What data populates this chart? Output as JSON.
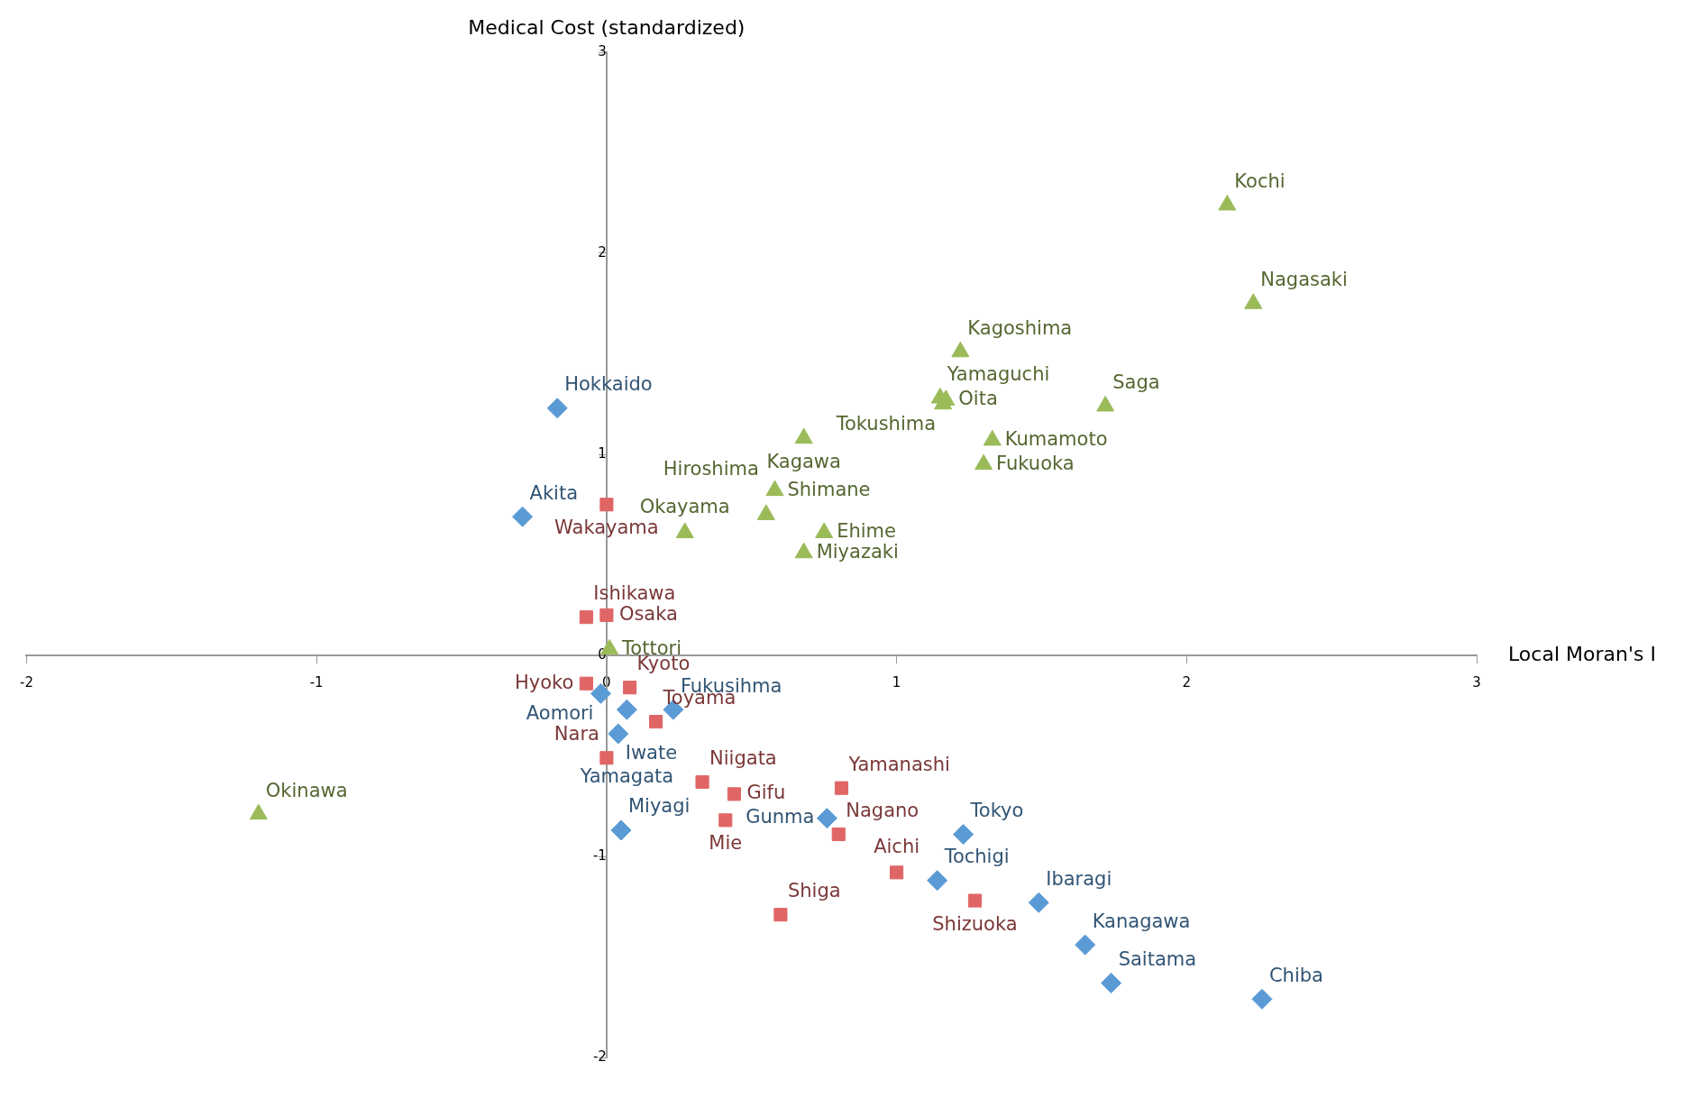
{
  "chart_data": {
    "type": "scatter",
    "xlabel": "Local Moran's I",
    "ylabel": "Medical Cost (standardized)",
    "xlim": [
      -2,
      3
    ],
    "ylim": [
      -2,
      3
    ],
    "xticks": [
      -2,
      -1,
      0,
      1,
      2,
      3
    ],
    "yticks": [
      -2,
      -1,
      0,
      1,
      2,
      3
    ],
    "grid": false,
    "legend": false,
    "series": [
      {
        "color": "#9bbb59",
        "marker": "triangle",
        "x": [
          2.14,
          2.23,
          1.22,
          1.15,
          1.72,
          1.17,
          1.16,
          1.33,
          1.3,
          0.68,
          0.58,
          0.27,
          0.55,
          0.75,
          0.68,
          0.01,
          -1.2
        ],
        "values": [
          2.24,
          1.75,
          1.51,
          1.28,
          1.24,
          1.27,
          1.25,
          1.07,
          0.95,
          1.08,
          0.82,
          0.61,
          0.7,
          0.61,
          0.51,
          0.03,
          -0.79
        ]
      },
      {
        "color": "#5b9bd5",
        "marker": "diamond",
        "x": [
          -0.17,
          -0.29,
          -0.02,
          0.07,
          0.23,
          0.04,
          0.05,
          0.76,
          1.23,
          1.14,
          1.49,
          1.65,
          1.74,
          2.26
        ],
        "values": [
          1.23,
          0.69,
          -0.19,
          -0.27,
          -0.27,
          -0.39,
          -0.87,
          -0.81,
          -0.89,
          -1.12,
          -1.23,
          -1.44,
          -1.63,
          -1.71
        ]
      },
      {
        "color": "#e06666",
        "marker": "square",
        "x": [
          0,
          -0.07,
          0,
          -0.07,
          0.08,
          0.17,
          0,
          0.33,
          0.44,
          0.41,
          0.81,
          0.8,
          1,
          1.27,
          0.6
        ],
        "values": [
          0.75,
          0.19,
          0.2,
          -0.14,
          -0.16,
          -0.33,
          -0.51,
          -0.63,
          -0.69,
          -0.82,
          -0.66,
          -0.89,
          -1.08,
          -1.22,
          -1.29
        ]
      }
    ],
    "annotations": [
      {
        "text": "Kochi",
        "x": 2.14,
        "y": 2.24
      },
      {
        "text": "Nagasaki",
        "x": 2.23,
        "y": 1.75
      },
      {
        "text": "Kagoshima",
        "x": 1.22,
        "y": 1.51
      },
      {
        "text": "Yamaguchi",
        "x": 1.15,
        "y": 1.28
      },
      {
        "text": "Saga",
        "x": 1.72,
        "y": 1.24
      },
      {
        "text": "Oita",
        "x": 1.17,
        "y": 1.27
      },
      {
        "text": "Tokushima",
        "x": 1.16,
        "y": 1.25
      },
      {
        "text": "Kumamoto",
        "x": 1.33,
        "y": 1.07
      },
      {
        "text": "Fukuoka",
        "x": 1.3,
        "y": 0.95
      },
      {
        "text": "Kagawa",
        "x": 0.68,
        "y": 1.08
      },
      {
        "text": "Shimane",
        "x": 0.58,
        "y": 0.82
      },
      {
        "text": "Okayama",
        "x": 0.27,
        "y": 0.61
      },
      {
        "text": "Hiroshima",
        "x": 0.55,
        "y": 0.7
      },
      {
        "text": "Ehime",
        "x": 0.75,
        "y": 0.61
      },
      {
        "text": "Miyazaki",
        "x": 0.68,
        "y": 0.51
      },
      {
        "text": "Tottori",
        "x": 0.01,
        "y": 0.03
      },
      {
        "text": "Okinawa",
        "x": -1.2,
        "y": -0.79
      },
      {
        "text": "Hokkaido",
        "x": -0.17,
        "y": 1.23
      },
      {
        "text": "Akita",
        "x": -0.29,
        "y": 0.69
      },
      {
        "text": "Aomori",
        "x": -0.02,
        "y": -0.19
      },
      {
        "text": "Yamagata",
        "x": 0.07,
        "y": -0.27
      },
      {
        "text": "Fukusihma",
        "x": 0.23,
        "y": -0.27
      },
      {
        "text": "Iwate",
        "x": 0.04,
        "y": -0.39
      },
      {
        "text": "Miyagi",
        "x": 0.05,
        "y": -0.87
      },
      {
        "text": "Gunma",
        "x": 0.76,
        "y": -0.81
      },
      {
        "text": "Tokyo",
        "x": 1.23,
        "y": -0.89
      },
      {
        "text": "Tochigi",
        "x": 1.14,
        "y": -1.12
      },
      {
        "text": "Ibaragi",
        "x": 1.49,
        "y": -1.23
      },
      {
        "text": "Kanagawa",
        "x": 1.65,
        "y": -1.44
      },
      {
        "text": "Saitama",
        "x": 1.74,
        "y": -1.63
      },
      {
        "text": "Chiba",
        "x": 2.26,
        "y": -1.71
      },
      {
        "text": "Wakayama",
        "x": 0,
        "y": 0.75
      },
      {
        "text": "Ishikawa",
        "x": -0.07,
        "y": 0.19
      },
      {
        "text": "Osaka",
        "x": 0,
        "y": 0.2
      },
      {
        "text": "Hyoko",
        "x": -0.07,
        "y": -0.14
      },
      {
        "text": "Kyoto",
        "x": 0.08,
        "y": -0.16
      },
      {
        "text": "Toyama",
        "x": 0.17,
        "y": -0.33
      },
      {
        "text": "Nara",
        "x": 0,
        "y": -0.51
      },
      {
        "text": "Niigata",
        "x": 0.33,
        "y": -0.63
      },
      {
        "text": "Gifu",
        "x": 0.44,
        "y": -0.69
      },
      {
        "text": "Mie",
        "x": 0.41,
        "y": -0.82
      },
      {
        "text": "Yamanashi",
        "x": 0.81,
        "y": -0.66
      },
      {
        "text": "Nagano",
        "x": 0.8,
        "y": -0.89
      },
      {
        "text": "Aichi",
        "x": 1,
        "y": -1.08
      },
      {
        "text": "Shizuoka",
        "x": 1.27,
        "y": -1.22
      },
      {
        "text": "Shiga",
        "x": 0.6,
        "y": -1.29
      }
    ]
  }
}
